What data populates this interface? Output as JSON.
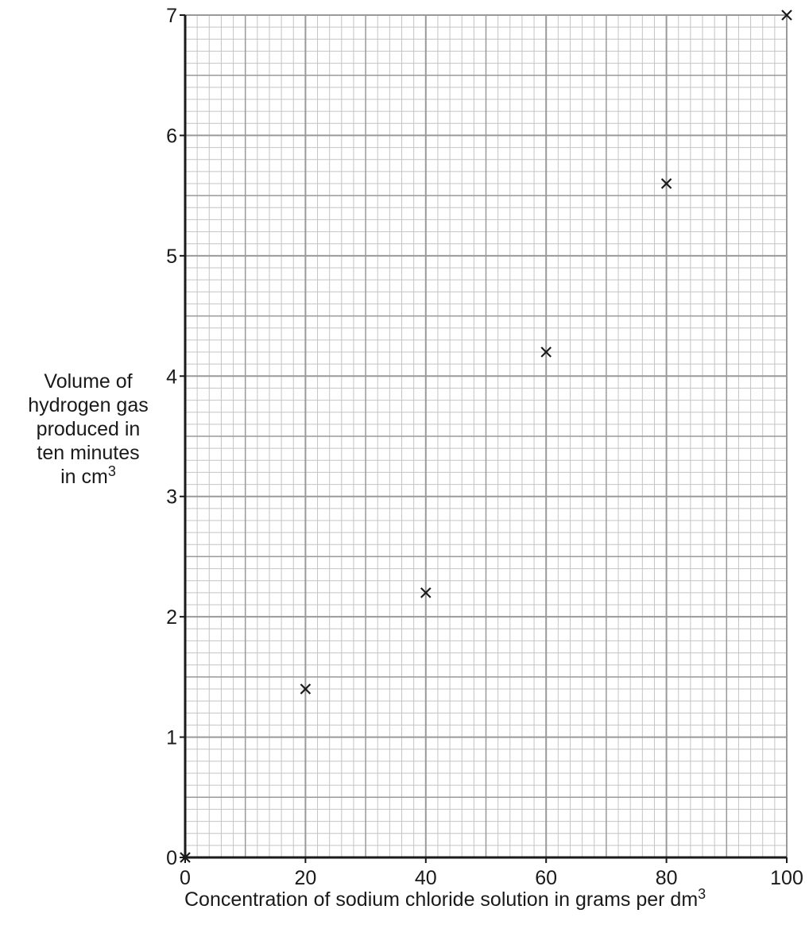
{
  "chart_data": {
    "type": "scatter",
    "title": "",
    "xlabel": "Concentration of sodium chloride solution in grams per dm",
    "xlabel_superscript": "3",
    "ylabel_lines": [
      "Volume of",
      "hydrogen gas",
      "produced in",
      "ten minutes",
      "in cm"
    ],
    "ylabel_superscript": "3",
    "xlim": [
      0,
      100
    ],
    "ylim": [
      0,
      7
    ],
    "x_ticks": [
      "0",
      "20",
      "40",
      "60",
      "80",
      "100"
    ],
    "y_ticks": [
      "0",
      "1",
      "2",
      "3",
      "4",
      "5",
      "6",
      "7"
    ],
    "grid": true,
    "marker": "x",
    "points": [
      {
        "x": 0,
        "y": 0
      },
      {
        "x": 20,
        "y": 1.4
      },
      {
        "x": 40,
        "y": 2.2
      },
      {
        "x": 60,
        "y": 4.2
      },
      {
        "x": 80,
        "y": 5.6
      },
      {
        "x": 100,
        "y": 7.0
      }
    ],
    "colors": {
      "grid_major": "#9a9a9a",
      "grid_minor": "#c4c4c4",
      "axis": "#1a1a1a",
      "marker": "#1a1a1a"
    }
  }
}
